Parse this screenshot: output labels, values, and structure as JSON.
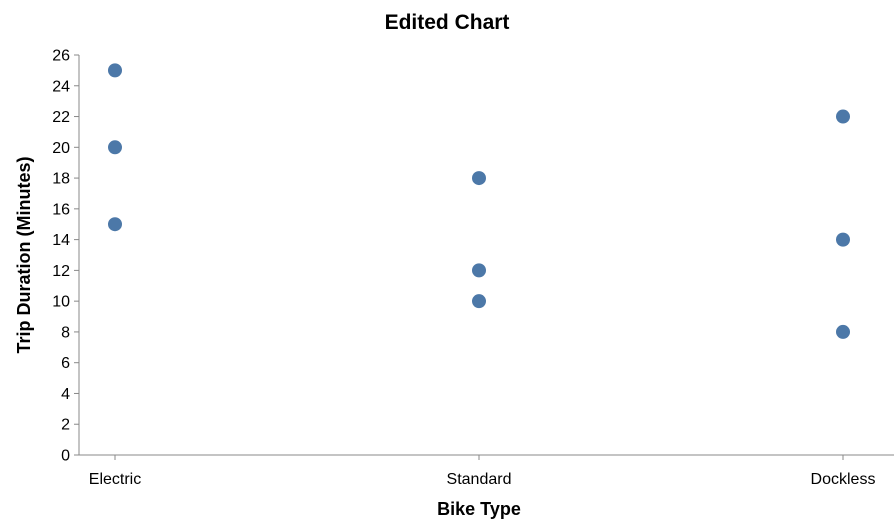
{
  "chart_data": {
    "type": "scatter",
    "title": "Edited Chart",
    "xlabel": "Bike Type",
    "ylabel": "Trip Duration (Minutes)",
    "categories": [
      "Electric",
      "Standard",
      "Dockless"
    ],
    "points": [
      {
        "x": "Electric",
        "y": 15
      },
      {
        "x": "Electric",
        "y": 20
      },
      {
        "x": "Electric",
        "y": 25
      },
      {
        "x": "Standard",
        "y": 10
      },
      {
        "x": "Standard",
        "y": 12
      },
      {
        "x": "Standard",
        "y": 18
      },
      {
        "x": "Dockless",
        "y": 8
      },
      {
        "x": "Dockless",
        "y": 14
      },
      {
        "x": "Dockless",
        "y": 22
      }
    ],
    "ylim": [
      0,
      26
    ],
    "yticks": [
      0,
      2,
      4,
      6,
      8,
      10,
      12,
      14,
      16,
      18,
      20,
      22,
      24,
      26
    ],
    "grid": false,
    "point_color": "#4c78a8"
  }
}
